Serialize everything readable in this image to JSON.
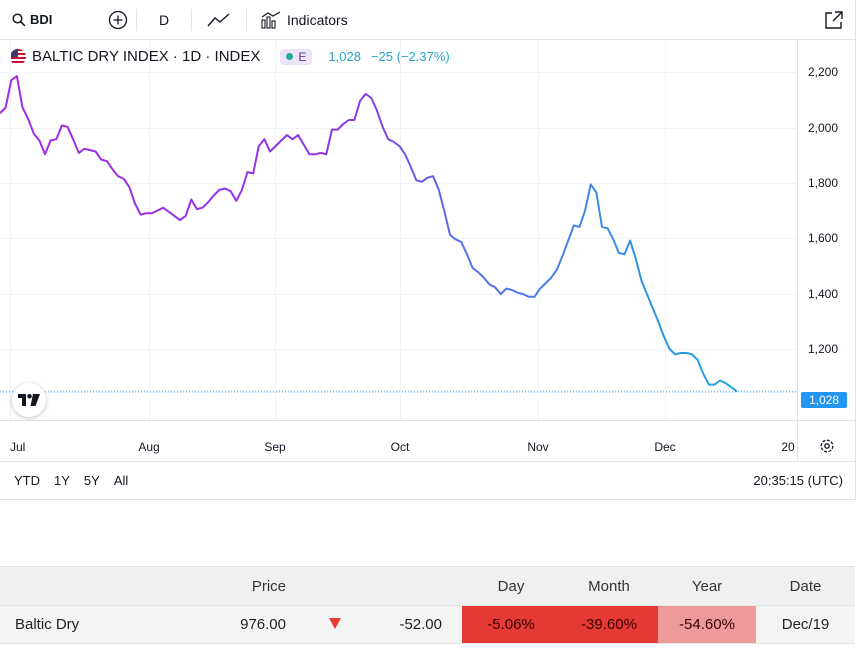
{
  "toolbar": {
    "symbol": "BDI",
    "interval": "D",
    "indicators_label": "Indicators"
  },
  "legend": {
    "title": "BALTIC DRY INDEX · 1D · INDEX",
    "badge": "E",
    "last": "1,028",
    "change": "−25 (−2.37%)"
  },
  "chart_data": {
    "type": "line",
    "x_tick_labels": [
      "Jul",
      "Aug",
      "Sep",
      "Oct",
      "Nov",
      "Dec",
      "20"
    ],
    "y_tick_labels": [
      "2,200",
      "2,000",
      "1,800",
      "1,600",
      "1,400",
      "1,200"
    ],
    "ylim": [
      950,
      2250
    ],
    "last_value_label": "1,028",
    "series": [
      {
        "values": [
          2040,
          2060,
          2160,
          2175,
          2060,
          2020,
          1965,
          1940,
          1890,
          1940,
          1945,
          1995,
          1990,
          1945,
          1895,
          1910,
          1905,
          1900,
          1870,
          1865,
          1835,
          1810,
          1800,
          1770,
          1710,
          1670,
          1675,
          1675,
          1685,
          1695,
          1680,
          1665,
          1650,
          1665,
          1725,
          1690,
          1695,
          1715,
          1740,
          1760,
          1765,
          1755,
          1720,
          1760,
          1825,
          1820,
          1920,
          1945,
          1900,
          1920,
          1940,
          1960,
          1945,
          1960,
          1925,
          1890,
          1890,
          1895,
          1890,
          1980,
          1980,
          2000,
          2015,
          2015,
          2085,
          2110,
          2095,
          2050,
          1990,
          1945,
          1935,
          1920,
          1890,
          1845,
          1795,
          1790,
          1805,
          1810,
          1760,
          1680,
          1595,
          1580,
          1570,
          1525,
          1475,
          1460,
          1440,
          1415,
          1405,
          1380,
          1400,
          1395,
          1385,
          1380,
          1370,
          1370,
          1400,
          1420,
          1440,
          1470,
          1520,
          1575,
          1630,
          1625,
          1685,
          1780,
          1750,
          1625,
          1620,
          1580,
          1530,
          1525,
          1575,
          1510,
          1430,
          1380,
          1330,
          1280,
          1225,
          1180,
          1160,
          1165,
          1165,
          1160,
          1140,
          1090,
          1050,
          1050,
          1065,
          1055,
          1040,
          1025
        ]
      }
    ]
  },
  "range_buttons": [
    "YTD",
    "1Y",
    "5Y",
    "All"
  ],
  "clock": "20:35:15 (UTC)",
  "table": {
    "headers": {
      "price": "Price",
      "day": "Day",
      "month": "Month",
      "year": "Year",
      "date": "Date"
    },
    "row": {
      "name": "Baltic Dry",
      "price": "976.00",
      "change": "-52.00",
      "day": "-5.06%",
      "month": "-39.60%",
      "year": "-54.60%",
      "date": "Dec/19"
    }
  },
  "colors": {
    "line_start": "#a32be8",
    "line_end": "#1ea6e0",
    "last_price_tag": "#2196f3",
    "negative_strong": "#e53935",
    "negative_light": "#ef9a9a"
  }
}
